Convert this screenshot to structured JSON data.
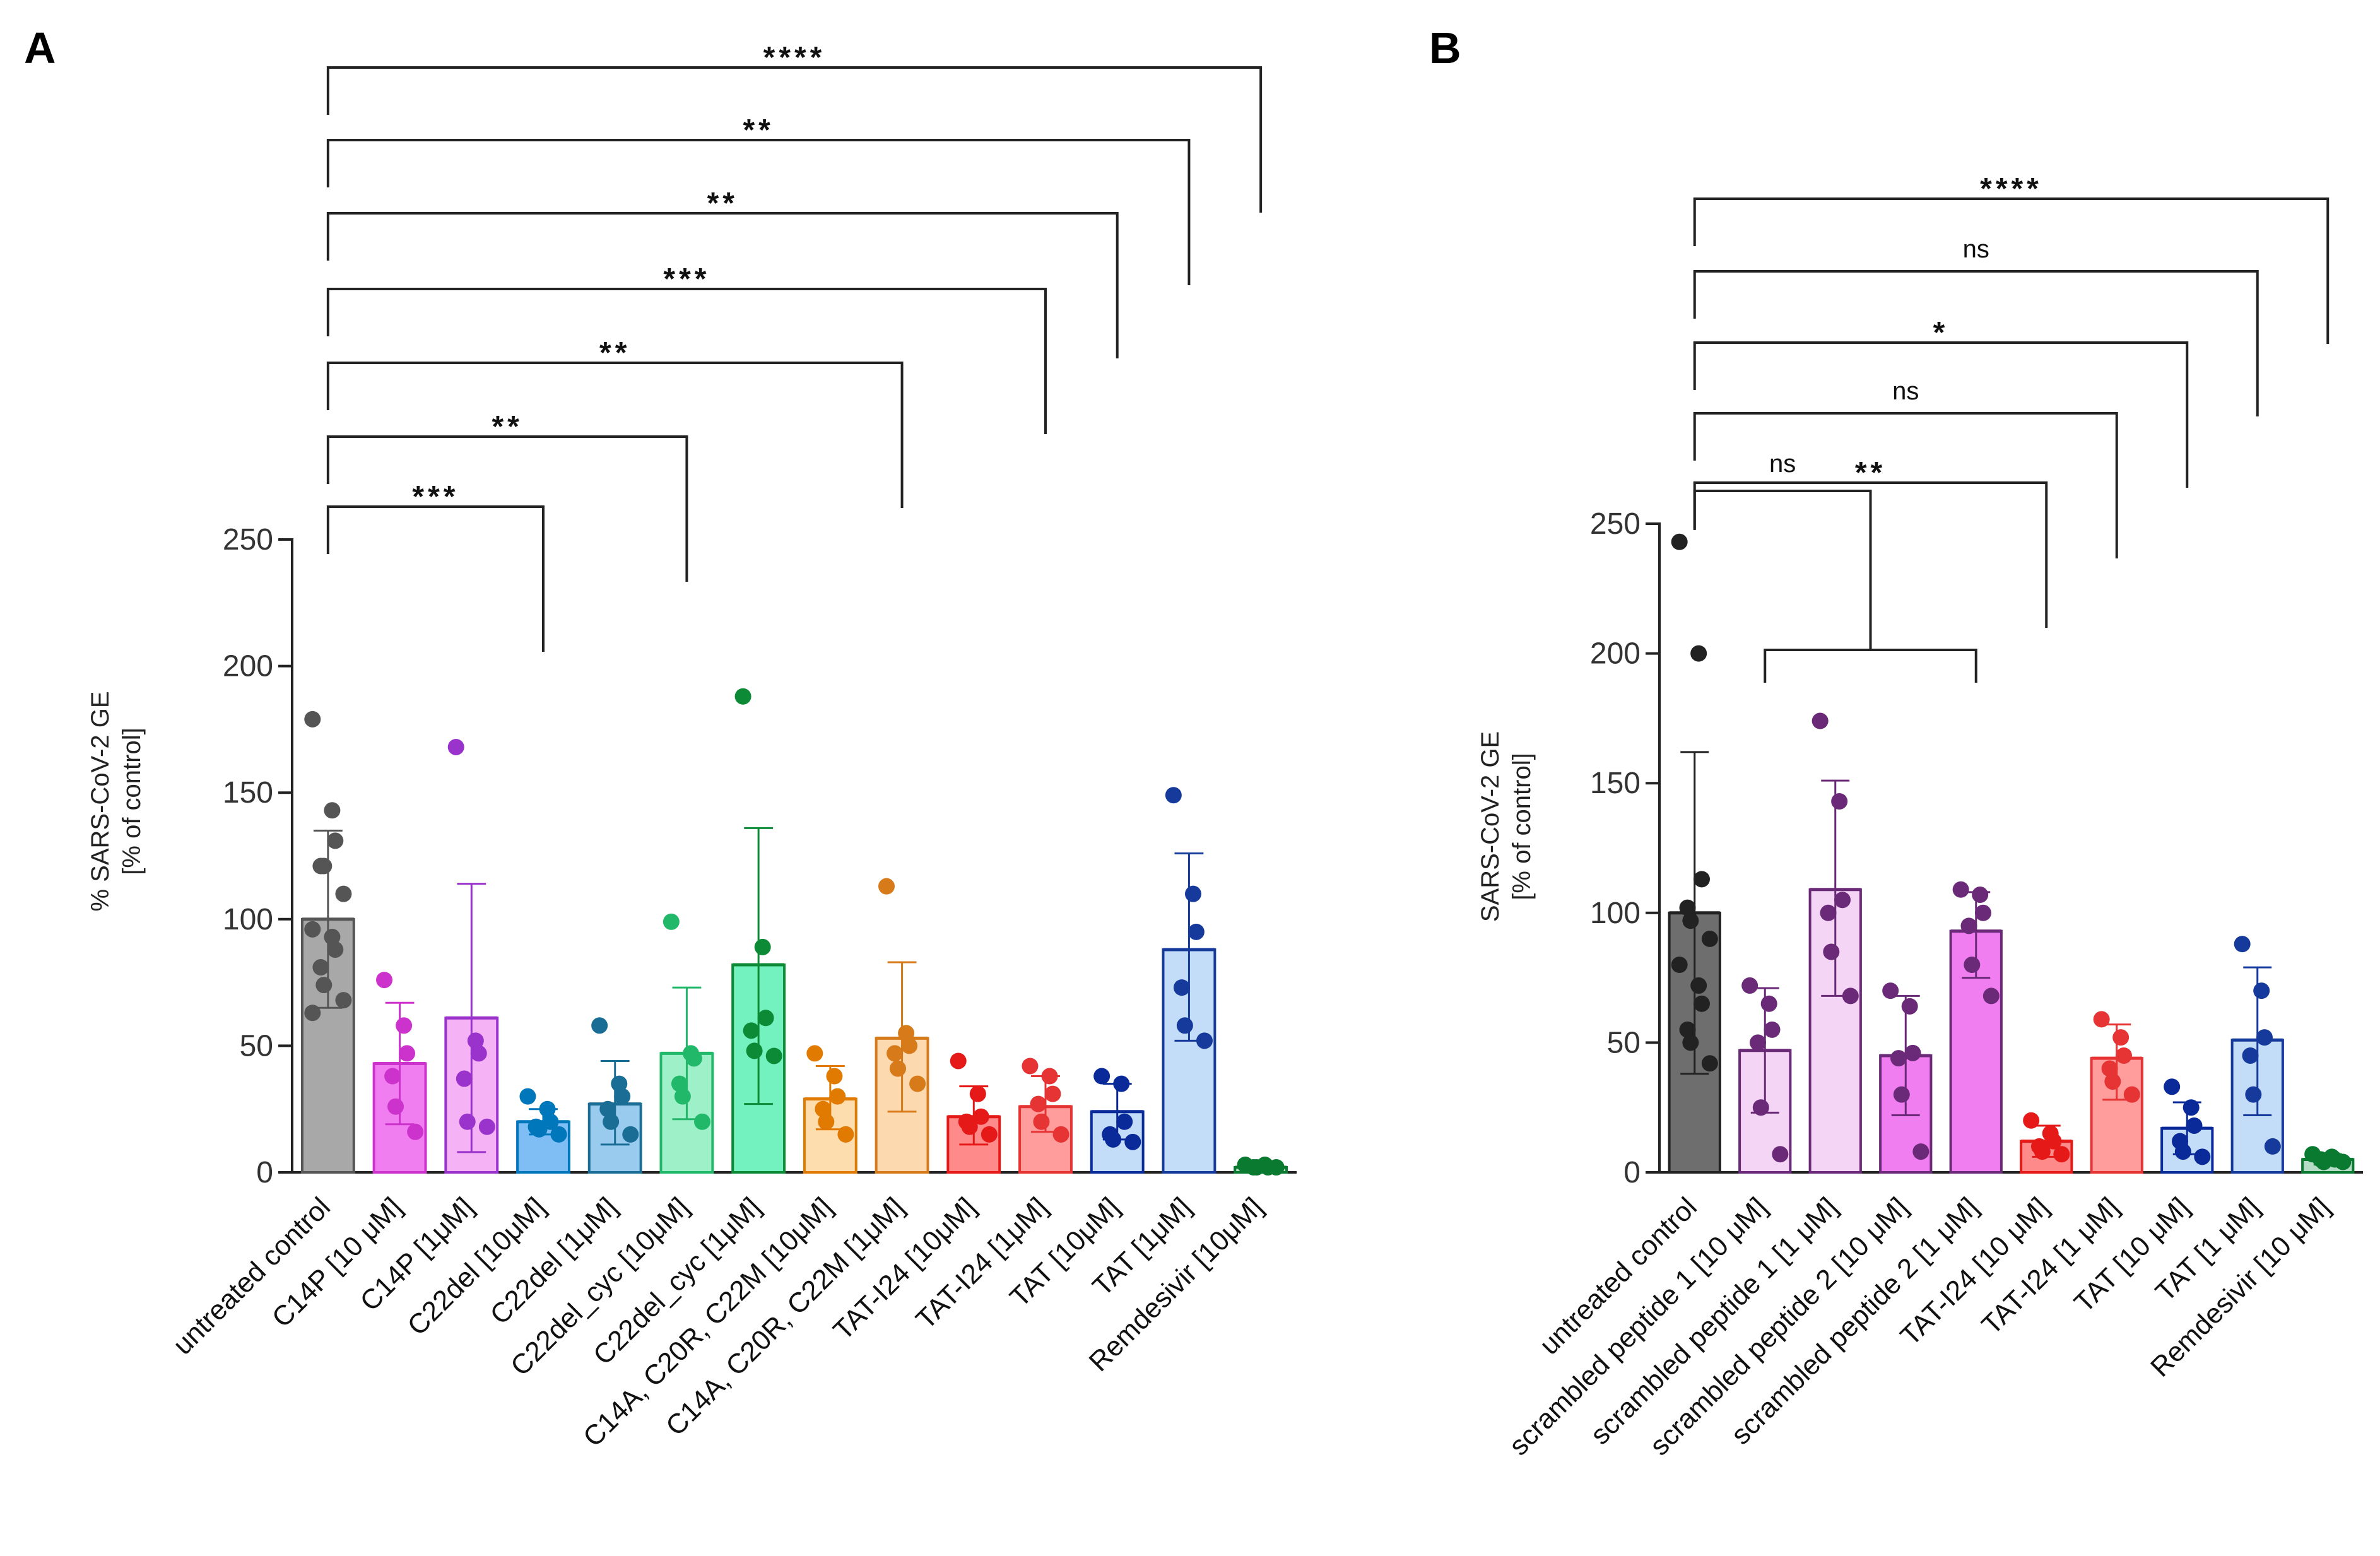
{
  "chart_data": [
    {
      "panel": "A",
      "type": "bar",
      "title": "",
      "xlabel": "",
      "ylabel": "% SARS-CoV-2 GE",
      "ylabel2": "[% of control]",
      "ylim": [
        0,
        250
      ],
      "yticks": [
        "0",
        "50",
        "100",
        "150",
        "200",
        "250"
      ],
      "categories": [
        "untreated control",
        "C14P [10 μM]",
        "C14P [1μM]",
        "C22del [10μM]",
        "C22del [1μM]",
        "C22del_cyc [10μM]",
        "C22del_cyc [1μM]",
        "C14A, C20R, C22M [10μM]",
        "C14A, C20R, C22M  [1μM]",
        "TAT-I24 [10μM]",
        "TAT-I24 [1μM]",
        "TAT [10μM]",
        "TAT [1μM]",
        "Remdesivir [10μM]"
      ],
      "values": [
        100,
        43,
        61,
        20,
        27,
        47,
        82,
        29,
        53,
        22,
        26,
        24,
        88,
        2
      ],
      "err": [
        [
          65,
          135
        ],
        [
          19,
          67
        ],
        [
          8,
          114
        ],
        [
          15,
          25
        ],
        [
          11,
          44
        ],
        [
          21,
          73
        ],
        [
          27,
          136
        ],
        [
          17,
          42
        ],
        [
          24,
          83
        ],
        [
          11,
          34
        ],
        [
          16,
          38
        ],
        [
          13,
          35
        ],
        [
          52,
          126
        ],
        [
          1,
          3
        ]
      ],
      "points": [
        [
          179,
          143,
          131,
          121,
          121,
          110,
          96,
          93,
          88,
          81,
          74,
          68,
          63
        ],
        [
          76,
          58,
          47,
          38,
          26,
          16
        ],
        [
          168,
          52,
          47,
          37,
          20,
          18
        ],
        [
          30,
          25,
          20,
          18,
          17,
          15
        ],
        [
          58,
          35,
          30,
          25,
          20,
          15
        ],
        [
          99,
          47,
          45,
          35,
          30,
          20
        ],
        [
          188,
          89,
          61,
          56,
          48,
          46
        ],
        [
          47,
          38,
          30,
          25,
          20,
          15
        ],
        [
          113,
          55,
          50,
          47,
          41,
          35
        ],
        [
          44,
          31,
          22,
          20,
          18,
          15
        ],
        [
          42,
          38,
          31,
          27,
          20,
          15
        ],
        [
          38,
          35,
          20,
          15,
          13,
          12
        ],
        [
          149,
          110,
          95,
          73,
          58,
          52
        ],
        [
          3,
          3,
          2,
          2,
          2,
          2
        ]
      ],
      "colors": [
        "#555555",
        "#cc33cc",
        "#9933cc",
        "#0077bb",
        "#1a6e96",
        "#22b86a",
        "#0c8a35",
        "#e07a00",
        "#d67a1a",
        "#e61919",
        "#e63333",
        "#0a2a99",
        "#153a9c",
        "#0a7a30"
      ],
      "fills": [
        "#a8a8a8",
        "#f07ef0",
        "#f5b3f5",
        "#7fbef5",
        "#98cbee",
        "#9ef0c8",
        "#73f2c0",
        "#fddcae",
        "#fdd9b0",
        "#ff8a8a",
        "#ff9c9c",
        "#c3dcf7",
        "#c3dcf7",
        "#b6dcc5"
      ],
      "significance": [
        {
          "from": 0,
          "to": 13,
          "label": "****"
        },
        {
          "from": 0,
          "to": 12,
          "label": "**"
        },
        {
          "from": 0,
          "to": 11,
          "label": "**"
        },
        {
          "from": 0,
          "to": 10,
          "label": "***"
        },
        {
          "from": 0,
          "to": 8,
          "label": "**"
        },
        {
          "from": 0,
          "to": 5,
          "label": "**"
        },
        {
          "from": 0,
          "to": 3,
          "label": "***"
        }
      ]
    },
    {
      "panel": "B",
      "type": "bar",
      "title": "",
      "xlabel": "",
      "ylabel": "SARS-CoV-2 GE",
      "ylabel2": "[% of control]",
      "ylim": [
        0,
        250
      ],
      "yticks": [
        "0",
        "50",
        "100",
        "150",
        "200",
        "250"
      ],
      "categories": [
        "untreated control",
        "scrambled peptide 1 [10 μM]",
        "scrambled peptide 1 [1 μM]",
        "scrambled peptide 2 [10 μM]",
        "scrambled peptide 2 [1 μM]",
        "TAT-I24 [10 μM]",
        "TAT-I24 [1 μM]",
        "TAT [10 μM]",
        "TAT [1 μM]",
        "Remdesivir [10 μM]"
      ],
      "values": [
        100,
        47,
        109,
        45,
        93,
        12,
        44,
        17,
        51,
        5
      ],
      "err": [
        [
          38,
          162
        ],
        [
          23,
          71
        ],
        [
          68,
          151
        ],
        [
          22,
          68
        ],
        [
          75,
          108
        ],
        [
          6,
          18
        ],
        [
          28,
          57
        ],
        [
          7,
          27
        ],
        [
          22,
          79
        ],
        [
          3,
          7
        ]
      ],
      "points": [
        [
          243,
          200,
          113,
          102,
          97,
          90,
          80,
          72,
          65,
          55,
          50,
          42
        ],
        [
          72,
          65,
          55,
          50,
          25,
          7
        ],
        [
          174,
          143,
          105,
          100,
          85,
          68
        ],
        [
          70,
          64,
          46,
          44,
          30,
          8
        ],
        [
          109,
          107,
          100,
          95,
          80,
          68
        ],
        [
          20,
          15,
          12,
          10,
          8,
          7
        ],
        [
          59,
          52,
          45,
          40,
          35,
          30
        ],
        [
          33,
          25,
          18,
          12,
          8,
          6
        ],
        [
          88,
          70,
          52,
          45,
          30,
          10
        ],
        [
          7,
          6,
          5,
          5,
          4,
          4
        ]
      ],
      "colors": [
        "#222222",
        "#6b2a78",
        "#6b2a78",
        "#6b2a78",
        "#6b2a78",
        "#e61919",
        "#e63333",
        "#0a2a99",
        "#153a9c",
        "#0a7a30"
      ],
      "fills": [
        "#6e6e6e",
        "#f5d5f5",
        "#f5d5f5",
        "#f07ef0",
        "#f07ef0",
        "#ff8a8a",
        "#ff9c9c",
        "#c3dcf7",
        "#c3dcf7",
        "#b6dcc5"
      ],
      "significance": [
        {
          "from": 0,
          "to": 9,
          "label": "****"
        },
        {
          "from": 0,
          "to": 8,
          "label": "ns"
        },
        {
          "from": 0,
          "to": 7,
          "label": "*"
        },
        {
          "from": 0,
          "to": 6,
          "label": "ns"
        },
        {
          "from": 0,
          "to": 5,
          "label": "**"
        }
      ],
      "group_significance": {
        "label": "ns",
        "group_from": 1,
        "group_to": 4
      }
    }
  ]
}
